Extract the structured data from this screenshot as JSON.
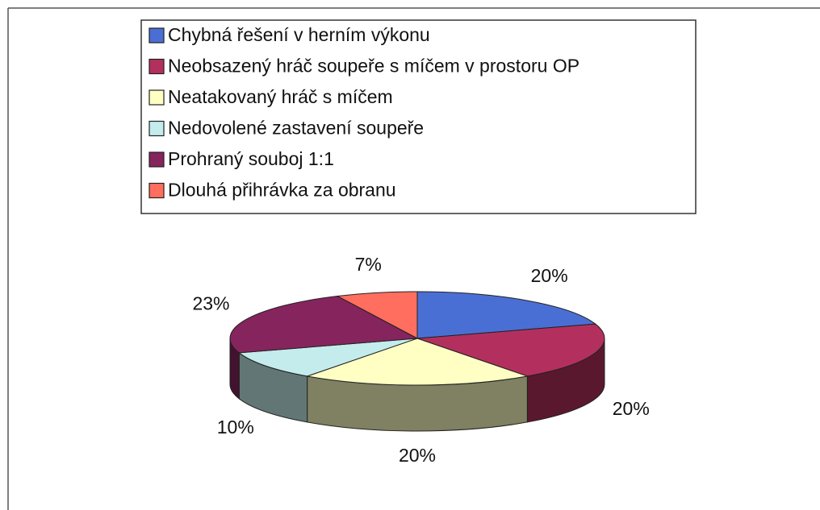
{
  "chart_data": {
    "type": "pie",
    "categories": [
      "Chybná řešení v herním výkonu",
      "Neobsazený hráč soupeře s míčem v prostoru OP",
      "Neatakovaný hráč s míčem",
      "Nedovolené zastavení soupeře",
      "Prohraný souboj 1:1",
      "Dlouhá přihrávka za obranu"
    ],
    "values": [
      20,
      20,
      20,
      10,
      23,
      7
    ],
    "value_labels": [
      "20%",
      "20%",
      "20%",
      "10%",
      "23%",
      "7%"
    ],
    "colors": [
      "#4a6fd4",
      "#b3305e",
      "#ffffc4",
      "#c4ecec",
      "#86245e",
      "#ff6e5e"
    ],
    "legend": "top"
  }
}
